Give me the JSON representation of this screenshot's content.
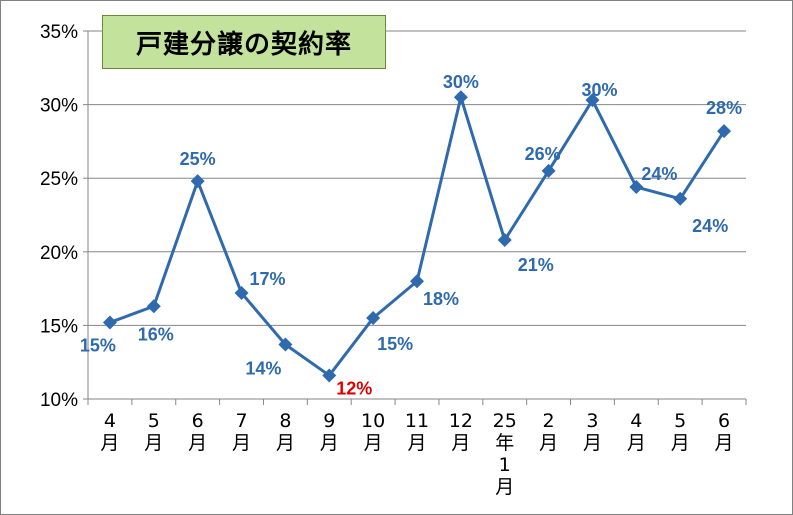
{
  "chart_data": {
    "type": "line",
    "title": "戸建分譲の契約率",
    "categories": [
      "4月",
      "5月",
      "6月",
      "7月",
      "8月",
      "9月",
      "10月",
      "11月",
      "12月",
      "25年1月",
      "2月",
      "3月",
      "4月",
      "5月",
      "6月"
    ],
    "series": [
      {
        "values": [
          15.2,
          16.3,
          24.8,
          17.2,
          13.7,
          11.6,
          15.5,
          18.0,
          30.5,
          20.8,
          25.5,
          30.3,
          24.4,
          23.6,
          28.2
        ],
        "labels": [
          "15%",
          "16%",
          "25%",
          "17%",
          "14%",
          "12%",
          "15%",
          "18%",
          "30%",
          "21%",
          "26%",
          "30%",
          "24%",
          "24%",
          "28%"
        ],
        "color": "#2e6aad",
        "highlight_color": "#e00000",
        "highlight_index": 5
      }
    ],
    "ylim": [
      10,
      35
    ],
    "yticks": [
      "10%",
      "15%",
      "20%",
      "25%",
      "30%",
      "35%"
    ],
    "grid": true,
    "xlabel": "",
    "ylabel": ""
  }
}
